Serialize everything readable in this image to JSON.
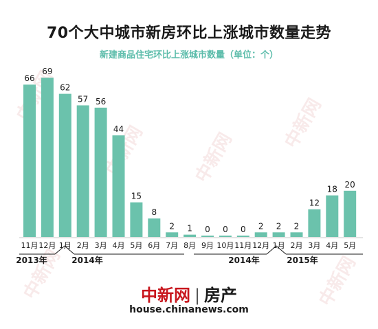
{
  "title": "70个大中城市新房环比上涨城市数量走势",
  "subtitle": "新建商品住宅环比上涨城市数量（单位：个）",
  "chart_data": {
    "type": "bar",
    "title": "70个大中城市新房环比上涨城市数量走势",
    "subtitle": "新建商品住宅环比上涨城市数量（单位：个）",
    "categories": [
      "11月",
      "12月",
      "1月",
      "2月",
      "3月",
      "4月",
      "5月",
      "6月",
      "7月",
      "8月",
      "9月",
      "10月",
      "11月",
      "12月",
      "1月",
      "2月",
      "3月",
      "4月",
      "5月"
    ],
    "values": [
      66,
      69,
      62,
      57,
      56,
      44,
      15,
      8,
      2,
      1,
      0,
      0,
      0,
      2,
      2,
      2,
      12,
      18,
      20
    ],
    "ylim": [
      0,
      72
    ],
    "year_groups": [
      {
        "label": "2013年"
      },
      {
        "label": "2014年"
      },
      {
        "label": "2014年"
      },
      {
        "label": "2015年"
      }
    ],
    "bar_color": "#6bc2ac",
    "grid": false
  },
  "footer": {
    "brand": "中新网",
    "section": "房产",
    "url": "house.chinanews.com"
  },
  "colors": {
    "accent": "#6bc2ac",
    "subtitle": "#5bbcaa",
    "brand_red": "#c8161d"
  }
}
